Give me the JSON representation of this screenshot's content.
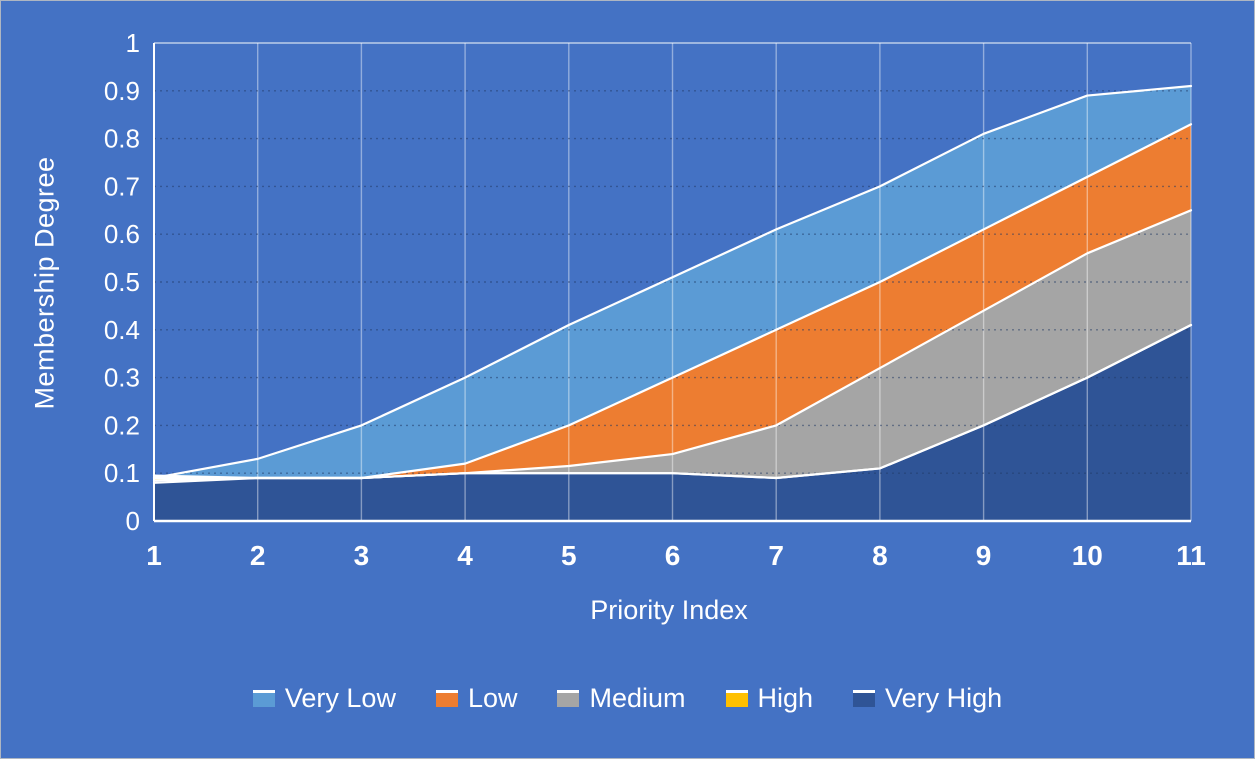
{
  "frame": {
    "background_color": "#4472C4",
    "border_color": "#aeb6c2"
  },
  "chart_data": {
    "type": "area",
    "title": "",
    "xlabel": "Priority Index",
    "ylabel": "Membership Degree",
    "x": [
      1,
      2,
      3,
      4,
      5,
      6,
      7,
      8,
      9,
      10,
      11
    ],
    "xlim": [
      1,
      11
    ],
    "ylim": [
      0,
      1
    ],
    "xtick_labels": [
      "1",
      "2",
      "3",
      "4",
      "5",
      "6",
      "7",
      "8",
      "9",
      "10",
      "11"
    ],
    "yticks": [
      0,
      0.1,
      0.2,
      0.3,
      0.4,
      0.5,
      0.6,
      0.7,
      0.8,
      0.9,
      1
    ],
    "ytick_labels": [
      "0",
      "0.1",
      "0.2",
      "0.3",
      "0.4",
      "0.5",
      "0.6",
      "0.7",
      "0.8",
      "0.9",
      "1"
    ],
    "grid": {
      "horizontal_style": "dotted",
      "horizontal_color": "#1F3864",
      "vertical_style": "solid",
      "vertical_color": "rgba(255,255,255,0.42)"
    },
    "legend_position": "bottom",
    "edge_stroke_color": "#FFFFFF",
    "series": [
      {
        "name": "Very Low",
        "color": "#5B9BD5",
        "values": [
          0.09,
          0.13,
          0.2,
          0.3,
          0.41,
          0.51,
          0.61,
          0.7,
          0.81,
          0.89,
          0.91
        ]
      },
      {
        "name": "Low",
        "color": "#ED7D31",
        "values": [
          0.09,
          0.09,
          0.09,
          0.12,
          0.2,
          0.3,
          0.4,
          0.5,
          0.61,
          0.72,
          0.83
        ]
      },
      {
        "name": "Medium",
        "color": "#A5A5A5",
        "values": [
          0.08,
          0.09,
          0.09,
          0.1,
          0.115,
          0.14,
          0.2,
          0.32,
          0.44,
          0.56,
          0.65
        ]
      },
      {
        "name": "High",
        "color": "#FFC000",
        "values": [
          0.095,
          0.09,
          0.09,
          0.1,
          0.1,
          0.1,
          0.09,
          0.11,
          0.2,
          0.3,
          0.41
        ]
      },
      {
        "name": "Very High",
        "color": "#2F5496",
        "values": [
          0.085,
          0.09,
          0.09,
          0.1,
          0.1,
          0.1,
          0.09,
          0.11,
          0.2,
          0.3,
          0.41
        ]
      }
    ]
  }
}
